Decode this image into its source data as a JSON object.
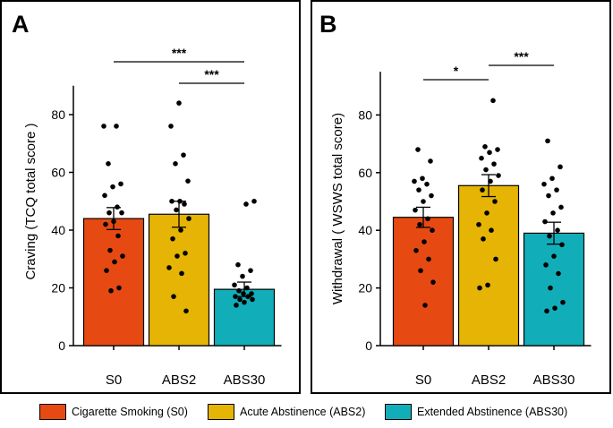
{
  "chart_data": [
    {
      "type": "bar",
      "panel_label": "A",
      "title": "",
      "xlabel": "",
      "ylabel": "Craving (TCQ total score )",
      "ylim": [
        0,
        90
      ],
      "yticks": [
        0,
        20,
        40,
        60,
        80
      ],
      "categories": [
        "S0",
        "ABS2",
        "ABS30"
      ],
      "values": [
        44,
        45.5,
        19.5
      ],
      "errors": [
        3.8,
        4.5,
        2.5
      ],
      "colors": [
        "#E64A12",
        "#E5B404",
        "#11AEB9"
      ],
      "points": [
        [
          76,
          76,
          63,
          56,
          55,
          52,
          48,
          46,
          46,
          43,
          42,
          38,
          33,
          31,
          29,
          26,
          20,
          19
        ],
        [
          84,
          76,
          66,
          63,
          57,
          50,
          50,
          49,
          47,
          44,
          40,
          37,
          32,
          31,
          27,
          25,
          17,
          12
        ],
        [
          50,
          49,
          28,
          26,
          24,
          21,
          20,
          19,
          18,
          18,
          17,
          17,
          16,
          16,
          15,
          14
        ]
      ],
      "significance": [
        {
          "from": "S0",
          "to": "ABS30",
          "label": "***"
        },
        {
          "from": "ABS2",
          "to": "ABS30",
          "label": "***"
        }
      ]
    },
    {
      "type": "bar",
      "panel_label": "B",
      "title": "",
      "xlabel": "",
      "ylabel": "Withdrawal ( WSWS total score)",
      "ylim": [
        0,
        95
      ],
      "yticks": [
        0,
        20,
        40,
        60,
        80
      ],
      "categories": [
        "S0",
        "ABS2",
        "ABS30"
      ],
      "values": [
        44.5,
        55.5,
        39
      ],
      "errors": [
        3.5,
        3.8,
        3.8
      ],
      "colors": [
        "#E64A12",
        "#E5B404",
        "#11AEB9"
      ],
      "points": [
        [
          68,
          64,
          58,
          57,
          56,
          54,
          52,
          50,
          47,
          44,
          42,
          40,
          36,
          33,
          30,
          26,
          22,
          14
        ],
        [
          85,
          69,
          68,
          67,
          65,
          63,
          61,
          59,
          57,
          54,
          50,
          46,
          42,
          40,
          37,
          30,
          21,
          20
        ],
        [
          71,
          62,
          58,
          56,
          54,
          52,
          48,
          46,
          43,
          40,
          38,
          35,
          31,
          28,
          25,
          20,
          15,
          13,
          12
        ]
      ],
      "significance": [
        {
          "from": "S0",
          "to": "ABS2",
          "label": "*"
        },
        {
          "from": "ABS2",
          "to": "ABS30",
          "label": "***"
        }
      ]
    }
  ],
  "legend": [
    {
      "label": "Cigarette Smoking (S0)",
      "color": "#E64A12"
    },
    {
      "label": "Acute Abstinence (ABS2)",
      "color": "#E5B404"
    },
    {
      "label": "Extended Abstinence (ABS30)",
      "color": "#11AEB9"
    }
  ]
}
